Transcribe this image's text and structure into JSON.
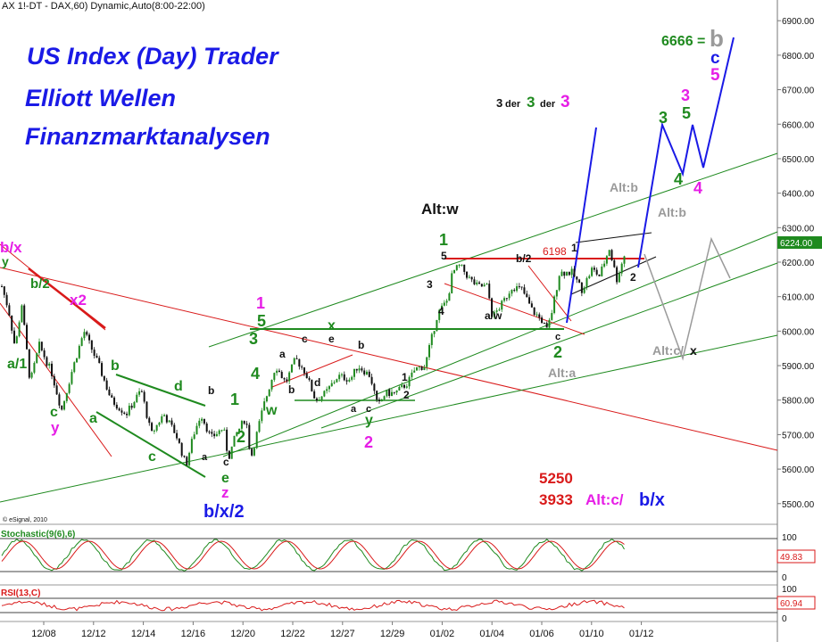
{
  "header": {
    "symbol_line": "AX 1!-DT - DAX,60) Dynamic,Auto(8:00-22:00)",
    "copyright": "© eSignal, 2010"
  },
  "headings": {
    "line1": "US Index (Day) Trader",
    "line2": "Elliott Wellen",
    "line3": "Finanzmarktanalysen"
  },
  "colors": {
    "blue": "#1a1ae6",
    "green": "#1f8a1f",
    "magenta": "#e61ee6",
    "red": "#d91a1a",
    "gray": "#9a9a9a",
    "black": "#111111",
    "candle_up": "#1f8a1f",
    "candle_down": "#111111"
  },
  "chart_data": [
    {
      "type": "candlestick",
      "title": "",
      "x_tick_labels": [
        "12/08",
        "12/12",
        "12/14",
        "12/16",
        "12/20",
        "12/22",
        "12/27",
        "12/29",
        "01/02",
        "01/04",
        "01/06",
        "01/10",
        "01/12"
      ],
      "ylim": [
        5440,
        6960
      ],
      "y_tick_labels": [
        "5500.00",
        "5600.00",
        "5700.00",
        "5800.00",
        "5900.00",
        "6000.00",
        "6100.00",
        "6200.00",
        "6300.00",
        "6400.00",
        "6500.00",
        "6600.00",
        "6700.00",
        "6800.00",
        "6900.00"
      ],
      "last_price_label": "6224.00",
      "price_path": [
        [
          0,
          6130
        ],
        [
          0.14,
          6060
        ],
        [
          0.27,
          5950
        ],
        [
          0.4,
          6080
        ],
        [
          0.57,
          5850
        ],
        [
          0.75,
          5960
        ],
        [
          1.0,
          5880
        ],
        [
          1.2,
          5770
        ],
        [
          1.4,
          5880
        ],
        [
          1.65,
          6000
        ],
        [
          1.95,
          5900
        ],
        [
          2.2,
          5800
        ],
        [
          2.5,
          5760
        ],
        [
          2.8,
          5830
        ],
        [
          3.0,
          5700
        ],
        [
          3.25,
          5760
        ],
        [
          3.5,
          5700
        ],
        [
          3.7,
          5610
        ],
        [
          3.85,
          5700
        ],
        [
          4.0,
          5760
        ],
        [
          4.2,
          5690
        ],
        [
          4.45,
          5720
        ],
        [
          4.55,
          5630
        ],
        [
          4.7,
          5700
        ],
        [
          4.9,
          5750
        ],
        [
          5.0,
          5630
        ],
        [
          5.25,
          5780
        ],
        [
          5.5,
          5900
        ],
        [
          5.7,
          5850
        ],
        [
          5.9,
          5920
        ],
        [
          6.1,
          5880
        ],
        [
          6.3,
          5800
        ],
        [
          6.5,
          5820
        ],
        [
          6.75,
          5870
        ],
        [
          7.0,
          5860
        ],
        [
          7.15,
          5900
        ],
        [
          7.4,
          5870
        ],
        [
          7.55,
          5780
        ],
        [
          7.7,
          5820
        ],
        [
          7.9,
          5820
        ],
        [
          8.15,
          5850
        ],
        [
          8.3,
          5890
        ],
        [
          8.5,
          5900
        ],
        [
          8.75,
          6050
        ],
        [
          8.95,
          6090
        ],
        [
          9.05,
          6170
        ],
        [
          9.2,
          6190
        ],
        [
          9.4,
          6150
        ],
        [
          9.55,
          6130
        ],
        [
          9.75,
          6130
        ],
        [
          9.85,
          6040
        ],
        [
          10.05,
          6080
        ],
        [
          10.25,
          6130
        ],
        [
          10.45,
          6120
        ],
        [
          10.65,
          6060
        ],
        [
          10.85,
          6030
        ],
        [
          10.95,
          6000
        ],
        [
          11.05,
          6060
        ],
        [
          11.2,
          6170
        ],
        [
          11.45,
          6170
        ],
        [
          11.65,
          6120
        ],
        [
          11.85,
          6180
        ],
        [
          12.0,
          6160
        ],
        [
          12.2,
          6240
        ],
        [
          12.35,
          6150
        ],
        [
          12.5,
          6220
        ]
      ],
      "stochastic": {
        "label": "Stochastic(9(6),6)",
        "current_value": "49.83",
        "levels": [
          "100",
          "0"
        ],
        "lines": [
          "%K",
          "%D"
        ]
      },
      "rsi": {
        "label": "RSI(13,C)",
        "current_value": "60.94",
        "levels": [
          "100",
          "0"
        ]
      }
    }
  ],
  "wave_labels": {
    "bx_left": "b/x",
    "y_left": "y",
    "b2_left": "b/2",
    "x2": "x2",
    "a1": "a/1",
    "c_left": "c",
    "y_magenta_left": "y",
    "a_green": "a",
    "b_green": "b",
    "d_green": "d",
    "c_green": "c",
    "a_low": "a",
    "b_black_low": "b",
    "c_black_low": "c",
    "e_green": "e",
    "z_magenta": "z",
    "bx2": "b/x/2",
    "one_green_early": "1",
    "two_green_early": "2",
    "one_magenta": "1",
    "five_green": "5",
    "three_green": "3",
    "four_green": "4",
    "w_green": "w",
    "x_green": "x",
    "a_mid": "a",
    "b_mid": "b",
    "c_mid": "c",
    "d_mid": "d",
    "e_mid": "e",
    "b_mid2": "b",
    "a_low2": "a",
    "c_low2": "c",
    "y_green_low": "y",
    "two_magenta": "2",
    "one_black_low": "1",
    "two_black_low": "2",
    "alt_w": "Alt:w",
    "one_green_top": "1",
    "five_black": "5",
    "three_black": "3",
    "four_black": "4",
    "b2_mid": "b/2",
    "aw": "a/w",
    "c_right": "c",
    "two_green_right": "2",
    "alt_a": "Alt:a",
    "v6198": "6198",
    "one_black_right": "1",
    "two_black_right": "2",
    "alt_b_top": "Alt:b",
    "alt_b_mid": "Alt:b",
    "alt_cx_label": "Alt:c/",
    "alt_cx_x": "x",
    "three_green_top": "3",
    "five_green_top": "5",
    "three_magenta_top": "3",
    "four_green_top": "4",
    "four_magenta_top": "4",
    "c_blue_top": "c",
    "five_magenta_top": "5",
    "v6666": "6666 =",
    "b_gray": "b",
    "third_a": "3",
    "third_der1": "der",
    "third_b": "3",
    "third_der2": "der",
    "third_c": "3",
    "level_5250": "5250",
    "level_3933": "3933",
    "alt_c_bottom": "Alt:c/",
    "bx_bottom": "b/x"
  }
}
